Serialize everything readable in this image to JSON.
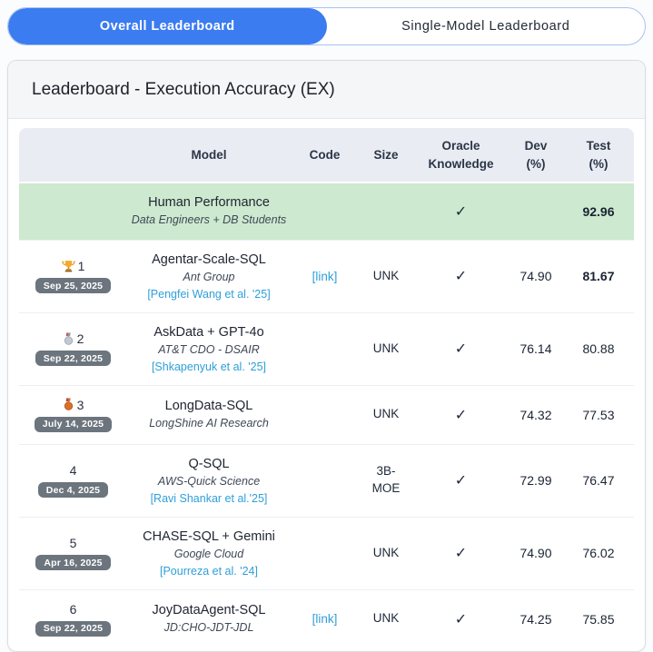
{
  "colors": {
    "accent": "#3b7cf0",
    "link": "#2f9fd8",
    "green": "#cde9cf",
    "badge": "#6c757d",
    "headbg": "#e9edf3"
  },
  "tabs": [
    {
      "label": "Overall Leaderboard",
      "active": true
    },
    {
      "label": "Single-Model Leaderboard",
      "active": false
    }
  ],
  "panel": {
    "title": "Leaderboard - Execution Accuracy (EX)"
  },
  "table": {
    "columns": [
      {
        "label": ""
      },
      {
        "label": "Model"
      },
      {
        "label": "Code"
      },
      {
        "label": "Size"
      },
      {
        "lines": [
          "Oracle",
          "Knowledge"
        ]
      },
      {
        "lines": [
          "Dev",
          "(%)"
        ]
      },
      {
        "lines": [
          "Test",
          "(%)"
        ]
      }
    ],
    "human_row": {
      "model": "Human Performance",
      "org": "Data Engineers + DB Students",
      "oracle": "✓",
      "dev": "",
      "test": "92.96",
      "test_bold": true
    },
    "rows": [
      {
        "rank": "1",
        "medal": "trophy-icon",
        "date": "Sep 25, 2025",
        "model": "Agentar-Scale-SQL",
        "org": "Ant Group",
        "paper": "[Pengfei Wang et al. '25]",
        "code": "[link]",
        "size": "UNK",
        "oracle": "✓",
        "dev": "74.90",
        "test": "81.67",
        "test_bold": true
      },
      {
        "rank": "2",
        "medal": "silver-medal-icon",
        "date": "Sep 22, 2025",
        "model": "AskData + GPT-4o",
        "org": "AT&T CDO - DSAIR",
        "paper": "[Shkapenyuk et al. '25]",
        "code": null,
        "size": "UNK",
        "oracle": "✓",
        "dev": "76.14",
        "test": "80.88",
        "test_bold": false
      },
      {
        "rank": "3",
        "medal": "bronze-medal-icon",
        "date": "July 14, 2025",
        "model": "LongData-SQL",
        "org": "LongShine AI Research",
        "paper": null,
        "code": null,
        "size": "UNK",
        "oracle": "✓",
        "dev": "74.32",
        "test": "77.53",
        "test_bold": false
      },
      {
        "rank": "4",
        "medal": null,
        "date": "Dec 4, 2025",
        "model": "Q-SQL",
        "org": "AWS-Quick Science",
        "paper": "[Ravi Shankar et al.'25]",
        "code": null,
        "size": "3B-MOE",
        "oracle": "✓",
        "dev": "72.99",
        "test": "76.47",
        "test_bold": false
      },
      {
        "rank": "5",
        "medal": null,
        "date": "Apr 16, 2025",
        "model": "CHASE-SQL + Gemini",
        "org": "Google Cloud",
        "paper": "[Pourreza et al. '24]",
        "code": null,
        "size": "UNK",
        "oracle": "✓",
        "dev": "74.90",
        "test": "76.02",
        "test_bold": false
      },
      {
        "rank": "6",
        "medal": null,
        "date": "Sep 22, 2025",
        "model": "JoyDataAgent-SQL",
        "org": "JD:CHO-JDT-JDL",
        "paper": null,
        "code": "[link]",
        "size": "UNK",
        "oracle": "✓",
        "dev": "74.25",
        "test": "75.85",
        "test_bold": false
      }
    ]
  }
}
